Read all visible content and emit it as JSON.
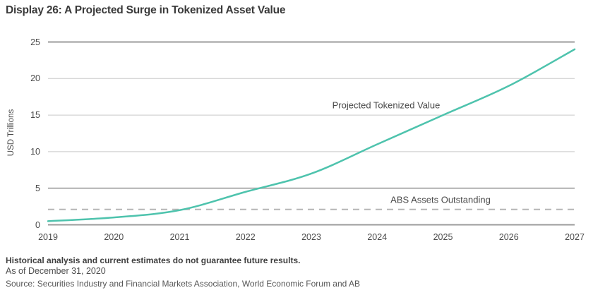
{
  "title": "Display 26: A Projected Surge in Tokenized Asset Value",
  "chart_data": {
    "type": "line",
    "x": [
      2019,
      2020,
      2021,
      2022,
      2023,
      2024,
      2025,
      2026,
      2027
    ],
    "series": [
      {
        "name": "Projected Tokenized Value",
        "values": [
          0.5,
          1.0,
          2.0,
          4.5,
          7.0,
          11.0,
          15.0,
          19.0,
          24.0
        ]
      }
    ],
    "reference_line": {
      "label": "ABS Assets Outstanding",
      "value": 2.1,
      "style": "dashed"
    },
    "title": "Display 26: A Projected Surge in Tokenized Asset Value",
    "xlabel": "",
    "ylabel": "USD Trillions",
    "ylim": [
      0,
      25
    ],
    "yticks": [
      0,
      5,
      10,
      15,
      20,
      25
    ],
    "grid": "horizontal",
    "legend_position": "inline-annotations"
  },
  "annotations": {
    "series_label": "Projected Tokenized Value",
    "reference_label": "ABS Assets Outstanding"
  },
  "footer": {
    "disclaimer": "Historical analysis and current estimates do not guarantee future results.",
    "as_of": "As of December 31, 2020",
    "source": "Source: Securities Industry and Financial Markets Association, World Economic Forum and AB"
  },
  "colors": {
    "line": "#4ec3ad",
    "grid_light": "#c9c9c9",
    "grid_medium": "#b0b0b0",
    "grid_strong": "#9b9b9b",
    "reference_dashed": "#b5b5b5",
    "title_text": "#3a3a3a",
    "axis_text": "#4a4a4a"
  }
}
